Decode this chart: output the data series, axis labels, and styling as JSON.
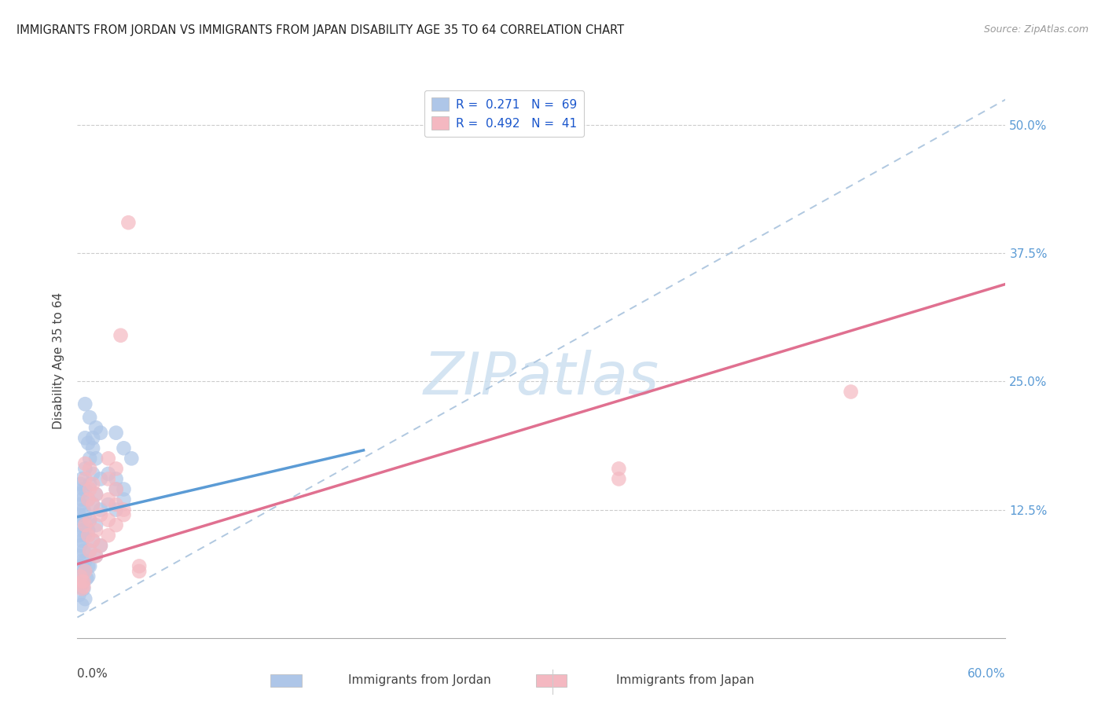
{
  "title": "IMMIGRANTS FROM JORDAN VS IMMIGRANTS FROM JAPAN DISABILITY AGE 35 TO 64 CORRELATION CHART",
  "source": "Source: ZipAtlas.com",
  "ylabel": "Disability Age 35 to 64",
  "jordan_color": "#aec6e8",
  "japan_color": "#f4b8c1",
  "jordan_line_color": "#5b9bd5",
  "japan_line_color": "#e07090",
  "dashed_line_color": "#b0c8e0",
  "watermark_color": "#cde0f0",
  "xlim": [
    0.0,
    0.6
  ],
  "ylim": [
    0.0,
    0.54
  ],
  "yticks": [
    0.125,
    0.25,
    0.375,
    0.5
  ],
  "ytick_labels": [
    "12.5%",
    "25.0%",
    "37.5%",
    "50.0%"
  ],
  "jordan_R": 0.271,
  "jordan_N": 69,
  "japan_R": 0.492,
  "japan_N": 41,
  "jordan_scatter": [
    [
      0.005,
      0.228
    ],
    [
      0.008,
      0.215
    ],
    [
      0.01,
      0.195
    ],
    [
      0.012,
      0.205
    ],
    [
      0.005,
      0.195
    ],
    [
      0.007,
      0.19
    ],
    [
      0.01,
      0.185
    ],
    [
      0.015,
      0.2
    ],
    [
      0.008,
      0.175
    ],
    [
      0.012,
      0.175
    ],
    [
      0.005,
      0.165
    ],
    [
      0.01,
      0.16
    ],
    [
      0.015,
      0.155
    ],
    [
      0.008,
      0.15
    ],
    [
      0.005,
      0.145
    ],
    [
      0.012,
      0.14
    ],
    [
      0.007,
      0.135
    ],
    [
      0.01,
      0.13
    ],
    [
      0.015,
      0.125
    ],
    [
      0.005,
      0.12
    ],
    [
      0.008,
      0.115
    ],
    [
      0.012,
      0.11
    ],
    [
      0.007,
      0.105
    ],
    [
      0.005,
      0.1
    ],
    [
      0.025,
      0.2
    ],
    [
      0.03,
      0.185
    ],
    [
      0.035,
      0.175
    ],
    [
      0.025,
      0.155
    ],
    [
      0.03,
      0.145
    ],
    [
      0.02,
      0.16
    ],
    [
      0.003,
      0.155
    ],
    [
      0.002,
      0.15
    ],
    [
      0.004,
      0.145
    ],
    [
      0.001,
      0.14
    ],
    [
      0.003,
      0.135
    ],
    [
      0.002,
      0.13
    ],
    [
      0.004,
      0.125
    ],
    [
      0.001,
      0.12
    ],
    [
      0.003,
      0.115
    ],
    [
      0.002,
      0.11
    ],
    [
      0.004,
      0.105
    ],
    [
      0.001,
      0.1
    ],
    [
      0.003,
      0.095
    ],
    [
      0.002,
      0.09
    ],
    [
      0.004,
      0.085
    ],
    [
      0.001,
      0.08
    ],
    [
      0.003,
      0.075
    ],
    [
      0.002,
      0.07
    ],
    [
      0.004,
      0.065
    ],
    [
      0.001,
      0.06
    ],
    [
      0.003,
      0.055
    ],
    [
      0.002,
      0.05
    ],
    [
      0.004,
      0.048
    ],
    [
      0.001,
      0.042
    ],
    [
      0.005,
      0.038
    ],
    [
      0.003,
      0.032
    ],
    [
      0.007,
      0.06
    ],
    [
      0.008,
      0.07
    ],
    [
      0.006,
      0.058
    ],
    [
      0.01,
      0.095
    ],
    [
      0.015,
      0.09
    ],
    [
      0.008,
      0.085
    ],
    [
      0.012,
      0.08
    ],
    [
      0.005,
      0.075
    ],
    [
      0.007,
      0.07
    ],
    [
      0.025,
      0.145
    ],
    [
      0.03,
      0.135
    ],
    [
      0.02,
      0.13
    ],
    [
      0.025,
      0.125
    ]
  ],
  "japan_scatter": [
    [
      0.005,
      0.17
    ],
    [
      0.008,
      0.165
    ],
    [
      0.005,
      0.155
    ],
    [
      0.01,
      0.15
    ],
    [
      0.008,
      0.145
    ],
    [
      0.012,
      0.14
    ],
    [
      0.007,
      0.135
    ],
    [
      0.01,
      0.13
    ],
    [
      0.015,
      0.12
    ],
    [
      0.008,
      0.115
    ],
    [
      0.005,
      0.11
    ],
    [
      0.012,
      0.105
    ],
    [
      0.007,
      0.1
    ],
    [
      0.01,
      0.095
    ],
    [
      0.015,
      0.09
    ],
    [
      0.008,
      0.085
    ],
    [
      0.012,
      0.08
    ],
    [
      0.02,
      0.175
    ],
    [
      0.025,
      0.165
    ],
    [
      0.02,
      0.155
    ],
    [
      0.025,
      0.145
    ],
    [
      0.02,
      0.135
    ],
    [
      0.025,
      0.13
    ],
    [
      0.03,
      0.125
    ],
    [
      0.03,
      0.12
    ],
    [
      0.02,
      0.115
    ],
    [
      0.025,
      0.11
    ],
    [
      0.02,
      0.1
    ],
    [
      0.002,
      0.06
    ],
    [
      0.003,
      0.055
    ],
    [
      0.004,
      0.05
    ],
    [
      0.003,
      0.048
    ],
    [
      0.004,
      0.055
    ],
    [
      0.005,
      0.065
    ],
    [
      0.028,
      0.295
    ],
    [
      0.033,
      0.405
    ],
    [
      0.5,
      0.24
    ],
    [
      0.35,
      0.165
    ],
    [
      0.35,
      0.155
    ],
    [
      0.04,
      0.065
    ],
    [
      0.04,
      0.07
    ]
  ],
  "jordan_trend": {
    "x": [
      0.0,
      0.185
    ],
    "y": [
      0.118,
      0.183
    ]
  },
  "japan_trend": {
    "x": [
      0.0,
      0.6
    ],
    "y": [
      0.072,
      0.345
    ]
  },
  "dashed_trend": {
    "x": [
      0.0,
      0.6
    ],
    "y": [
      0.02,
      0.525
    ]
  }
}
